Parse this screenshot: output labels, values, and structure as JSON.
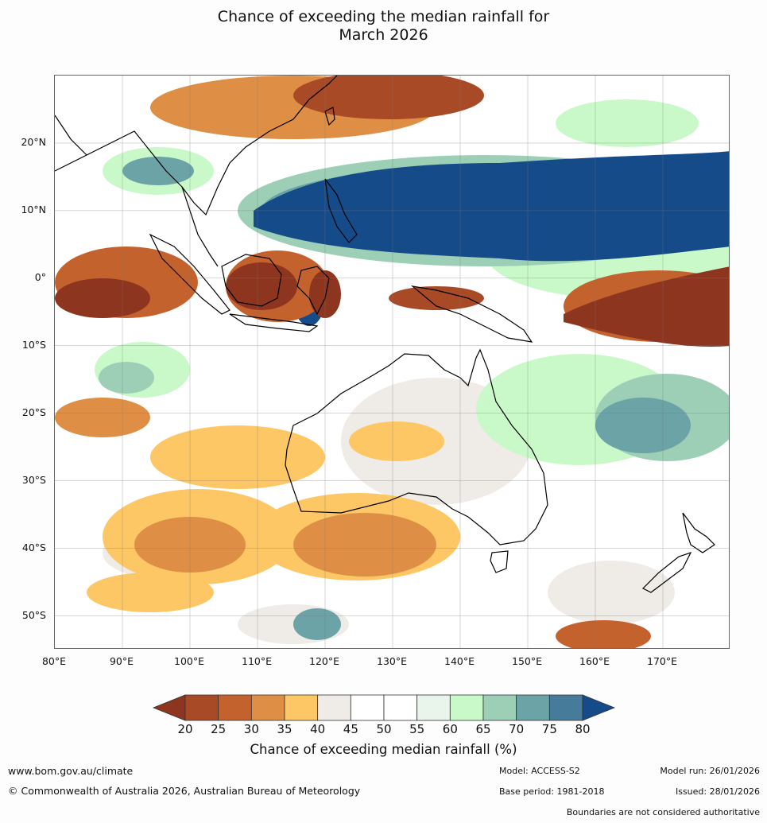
{
  "title": {
    "line1": "Chance of exceeding the median rainfall for",
    "line2": "March 2026"
  },
  "map": {
    "lat_labels": [
      "20°N",
      "10°N",
      "0°",
      "10°S",
      "20°S",
      "30°S",
      "40°S",
      "50°S"
    ],
    "lon_labels": [
      "80°E",
      "90°E",
      "100°E",
      "110°E",
      "120°E",
      "130°E",
      "140°E",
      "150°E",
      "160°E",
      "170°E"
    ],
    "extent": {
      "lon": [
        80,
        180
      ],
      "lat": [
        -55,
        30
      ]
    }
  },
  "colorbar": {
    "label": "Chance of exceeding median rainfall (%)",
    "ticks": [
      "20",
      "25",
      "30",
      "35",
      "40",
      "45",
      "50",
      "55",
      "60",
      "65",
      "70",
      "75",
      "80"
    ],
    "colors": [
      "#8e3520",
      "#a94a26",
      "#c4622e",
      "#de8f45",
      "#fdc765",
      "#efebe7",
      "#ffffff",
      "#ffffff",
      "#e9f5ea",
      "#c9f9c9",
      "#9ccfb6",
      "#6ba3a6",
      "#467c9a",
      "#154b88"
    ],
    "under_color": "#8e3520",
    "over_color": "#154b88"
  },
  "footer": {
    "url": "www.bom.gov.au/climate",
    "copyright": "© Commonwealth of Australia 2026, Australian Bureau of Meteorology",
    "model": "Model: ACCESS-S2",
    "base_period": "Base period: 1981-2018",
    "model_run": "Model run: 26/01/2026",
    "issued": "Issued: 28/01/2026",
    "boundaries": "Boundaries are not considered authoritative"
  }
}
